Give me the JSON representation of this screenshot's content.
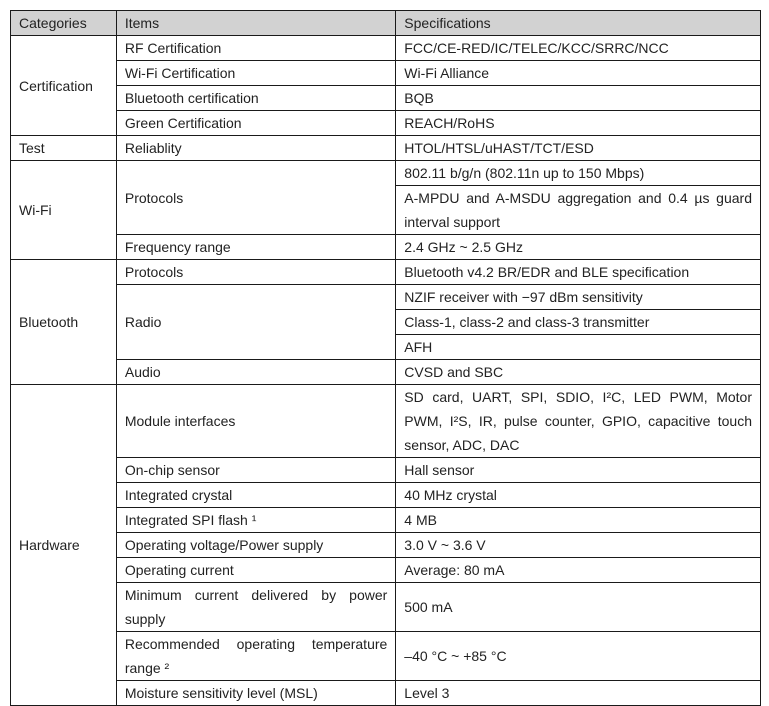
{
  "header": {
    "categories": "Categories",
    "items": "Items",
    "specs": "Specifications"
  },
  "certification": {
    "category": "Certification",
    "rows": [
      {
        "item": "RF Certification",
        "spec": "FCC/CE-RED/IC/TELEC/KCC/SRRC/NCC"
      },
      {
        "item": "Wi-Fi Certification",
        "spec": "Wi-Fi Alliance"
      },
      {
        "item": "Bluetooth certification",
        "spec": "BQB"
      },
      {
        "item": "Green Certification",
        "spec": "REACH/RoHS"
      }
    ]
  },
  "test": {
    "category": "Test",
    "item": "Reliablity",
    "spec": "HTOL/HTSL/uHAST/TCT/ESD"
  },
  "wifi": {
    "category": "Wi-Fi",
    "protocols": {
      "item": "Protocols",
      "specs": [
        "802.11 b/g/n (802.11n up to 150 Mbps)",
        "A-MPDU and A-MSDU aggregation and 0.4 µs guard interval support"
      ]
    },
    "frequency": {
      "item": "Frequency range",
      "spec": "2.4 GHz ~ 2.5 GHz"
    }
  },
  "bluetooth": {
    "category": "Bluetooth",
    "protocols": {
      "item": "Protocols",
      "spec": "Bluetooth v4.2 BR/EDR and BLE specification"
    },
    "radio": {
      "item": "Radio",
      "specs": [
        "NZIF receiver with −97 dBm sensitivity",
        "Class-1, class-2 and class-3 transmitter",
        "AFH"
      ]
    },
    "audio": {
      "item": "Audio",
      "spec": "CVSD and SBC"
    }
  },
  "hardware": {
    "category": "Hardware",
    "rows": [
      {
        "item": "Module interfaces",
        "spec": "SD card, UART, SPI, SDIO, I²C, LED PWM, Motor PWM, I²S, IR, pulse counter, GPIO, capacitive touch sensor, ADC, DAC"
      },
      {
        "item": "On-chip sensor",
        "spec": "Hall sensor"
      },
      {
        "item": "Integrated crystal",
        "spec": "40 MHz crystal"
      },
      {
        "item": "Integrated SPI flash ¹",
        "spec": "4 MB"
      },
      {
        "item": "Operating voltage/Power supply",
        "spec": "3.0 V ~ 3.6 V"
      },
      {
        "item": "Operating current",
        "spec": "Average: 80 mA"
      },
      {
        "item": "Minimum current delivered by power supply",
        "spec": "500 mA"
      },
      {
        "item": "Recommended operating temperature range ²",
        "spec": "–40 °C ~ +85 °C"
      },
      {
        "item": "Moisture sensitivity level (MSL)",
        "spec": "Level 3"
      }
    ]
  }
}
